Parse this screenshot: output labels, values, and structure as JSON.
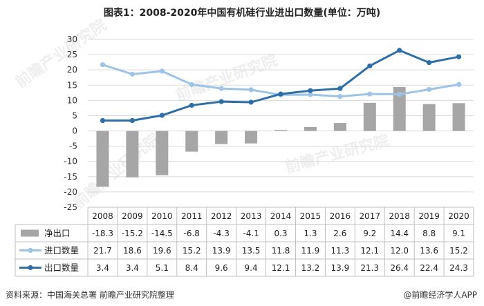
{
  "title": "图表1：2008-2020年中国有机硅行业进出口数量(单位：万吨)",
  "footer": {
    "source": "资料来源：中国海关总署 前瞻产业研究院整理",
    "brand": "@前瞻经济学人APP"
  },
  "watermark": {
    "text": "前瞻产业研究院"
  },
  "chart_data": {
    "type": "bar+line",
    "categories": [
      "2008",
      "2009",
      "2010",
      "2011",
      "2012",
      "2013",
      "2014",
      "2015",
      "2016",
      "2017",
      "2018",
      "2019",
      "2020"
    ],
    "ylim": [
      -25,
      30
    ],
    "yticks": [
      30,
      25,
      20,
      15,
      10,
      5,
      0,
      -5,
      -10,
      -15,
      -20,
      -25
    ],
    "grid": true,
    "series": [
      {
        "name": "净出口",
        "kind": "bar",
        "color": "#a6a6a6",
        "values": [
          -18.3,
          -15.2,
          -14.5,
          -6.8,
          -4.3,
          -4.1,
          0.3,
          1.3,
          2.6,
          9.2,
          14.4,
          8.8,
          9.1
        ],
        "labels": [
          "-18.3",
          "-15.2",
          "-14.5",
          "-6.8",
          "-4.3",
          "-4.1",
          "0.3",
          "1.3",
          "2.6",
          "9.2",
          "14.4",
          "8.8",
          "9.1"
        ]
      },
      {
        "name": "进口数量",
        "kind": "line",
        "color": "#9dc3e6",
        "values": [
          21.7,
          18.6,
          19.6,
          15.2,
          13.9,
          13.5,
          11.8,
          11.9,
          11.3,
          12.1,
          12.0,
          13.6,
          15.2
        ],
        "labels": [
          "21.7",
          "18.6",
          "19.6",
          "15.2",
          "13.9",
          "13.5",
          "11.8",
          "11.9",
          "11.3",
          "12.1",
          "12.0",
          "13.6",
          "15.2"
        ]
      },
      {
        "name": "出口数量",
        "kind": "line",
        "color": "#2e6ea6",
        "values": [
          3.4,
          3.4,
          5.1,
          8.4,
          9.6,
          9.4,
          12.1,
          13.2,
          13.9,
          21.3,
          26.4,
          22.4,
          24.3
        ],
        "labels": [
          "3.4",
          "3.4",
          "5.1",
          "8.4",
          "9.6",
          "9.4",
          "12.1",
          "13.2",
          "13.9",
          "21.3",
          "26.4",
          "22.4",
          "24.3"
        ]
      }
    ]
  }
}
